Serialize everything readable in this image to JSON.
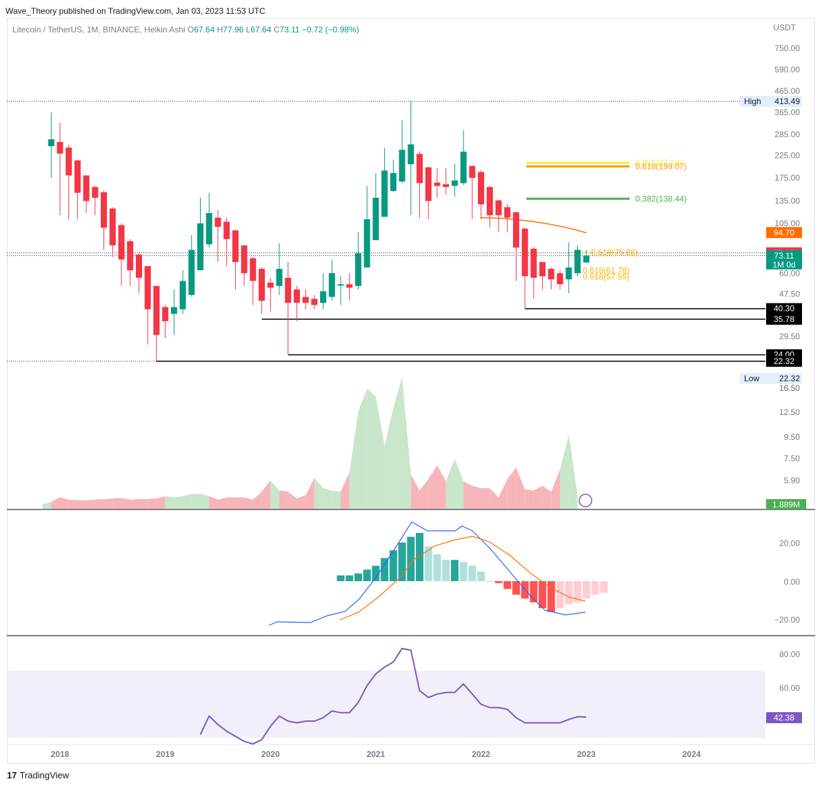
{
  "header": {
    "publisher": "Wave_Theory published on TradingView.com, Jan 03, 2023 11:53 UTC"
  },
  "legend": {
    "symbol": "Litecoin / TetherUS, 1M, BINANCE, Heikin Ashi",
    "o_label": "O",
    "o": "67.64",
    "h_label": "H",
    "h": "77.96",
    "l_label": "L",
    "l": "67.64",
    "c_label": "C",
    "c": "73.11",
    "change": "−0.72 (−0.98%)"
  },
  "footer": {
    "brand": "TradingView"
  },
  "colors": {
    "up": "#089981",
    "down": "#f23645",
    "grid_line": "#000000",
    "macd": "#2962ff",
    "signal": "#ff6d00",
    "rsi": "#7e57c2",
    "fib_green": "#4caf50",
    "fib_yellow": "#ffeb3b",
    "fib_orange": "#ff9800"
  },
  "chart_data": {
    "type": "candlestick",
    "price_scale": "log",
    "currency": "USDT",
    "y_ticks": [
      "750.00",
      "590.00",
      "465.00",
      "365.00",
      "285.00",
      "225.00",
      "175.00",
      "135.00",
      "105.00",
      "60.00",
      "47.50",
      "29.50",
      "16.50"
    ],
    "x_ticks": [
      "2018",
      "2019",
      "2020",
      "2021",
      "2022",
      "2023",
      "2024"
    ],
    "candles": [
      {
        "t": "2017-12",
        "o": 250,
        "h": 365,
        "l": 175,
        "c": 270
      },
      {
        "t": "2018-01",
        "o": 262,
        "h": 325,
        "l": 115,
        "c": 230
      },
      {
        "t": "2018-02",
        "o": 246,
        "h": 255,
        "l": 110,
        "c": 180
      },
      {
        "t": "2018-03",
        "o": 213,
        "h": 215,
        "l": 110,
        "c": 148
      },
      {
        "t": "2018-04",
        "o": 180,
        "h": 180,
        "l": 118,
        "c": 135
      },
      {
        "t": "2018-05",
        "o": 158,
        "h": 160,
        "l": 115,
        "c": 140
      },
      {
        "t": "2018-06",
        "o": 149,
        "h": 152,
        "l": 78,
        "c": 100
      },
      {
        "t": "2018-07",
        "o": 124,
        "h": 126,
        "l": 72,
        "c": 82
      },
      {
        "t": "2018-08",
        "o": 103,
        "h": 105,
        "l": 52,
        "c": 70
      },
      {
        "t": "2018-09",
        "o": 86,
        "h": 88,
        "l": 52,
        "c": 62
      },
      {
        "t": "2018-10",
        "o": 74,
        "h": 75,
        "l": 48,
        "c": 57
      },
      {
        "t": "2018-11",
        "o": 65,
        "h": 65,
        "l": 27,
        "c": 40
      },
      {
        "t": "2018-12",
        "o": 52,
        "h": 52,
        "l": 22.32,
        "c": 30
      },
      {
        "t": "2019-01",
        "o": 41,
        "h": 42,
        "l": 29,
        "c": 35
      },
      {
        "t": "2019-02",
        "o": 38,
        "h": 50,
        "l": 30,
        "c": 41
      },
      {
        "t": "2019-03",
        "o": 40,
        "h": 62,
        "l": 38,
        "c": 55
      },
      {
        "t": "2019-04",
        "o": 47,
        "h": 92,
        "l": 46,
        "c": 78
      },
      {
        "t": "2019-05",
        "o": 62,
        "h": 140,
        "l": 62,
        "c": 105
      },
      {
        "t": "2019-06",
        "o": 83,
        "h": 148,
        "l": 80,
        "c": 118
      },
      {
        "t": "2019-07",
        "o": 112,
        "h": 122,
        "l": 68,
        "c": 101
      },
      {
        "t": "2019-08",
        "o": 107,
        "h": 112,
        "l": 65,
        "c": 88
      },
      {
        "t": "2019-09",
        "o": 97,
        "h": 98,
        "l": 50,
        "c": 68
      },
      {
        "t": "2019-10",
        "o": 82,
        "h": 82,
        "l": 52,
        "c": 60
      },
      {
        "t": "2019-11",
        "o": 71,
        "h": 72,
        "l": 42,
        "c": 55
      },
      {
        "t": "2019-12",
        "o": 63,
        "h": 64,
        "l": 38,
        "c": 44
      },
      {
        "t": "2020-01",
        "o": 54,
        "h": 57,
        "l": 39,
        "c": 51
      },
      {
        "t": "2020-02",
        "o": 52,
        "h": 84,
        "l": 47,
        "c": 63
      },
      {
        "t": "2020-03",
        "o": 57,
        "h": 68,
        "l": 24.0,
        "c": 43
      },
      {
        "t": "2020-04",
        "o": 50,
        "h": 52,
        "l": 35,
        "c": 43
      },
      {
        "t": "2020-05",
        "o": 46,
        "h": 50,
        "l": 40,
        "c": 43
      },
      {
        "t": "2020-06",
        "o": 45,
        "h": 47,
        "l": 40,
        "c": 42
      },
      {
        "t": "2020-07",
        "o": 43,
        "h": 60,
        "l": 40,
        "c": 49
      },
      {
        "t": "2020-08",
        "o": 46,
        "h": 70,
        "l": 44,
        "c": 60
      },
      {
        "t": "2020-09",
        "o": 53,
        "h": 58,
        "l": 42,
        "c": 53
      },
      {
        "t": "2020-10",
        "o": 53,
        "h": 60,
        "l": 44,
        "c": 51
      },
      {
        "t": "2020-11",
        "o": 52,
        "h": 95,
        "l": 50,
        "c": 75
      },
      {
        "t": "2020-12",
        "o": 64,
        "h": 160,
        "l": 64,
        "c": 110
      },
      {
        "t": "2021-01",
        "o": 87,
        "h": 185,
        "l": 88,
        "c": 140
      },
      {
        "t": "2021-02",
        "o": 113,
        "h": 245,
        "l": 113,
        "c": 190
      },
      {
        "t": "2021-03",
        "o": 151,
        "h": 215,
        "l": 150,
        "c": 185
      },
      {
        "t": "2021-04",
        "o": 168,
        "h": 335,
        "l": 165,
        "c": 240
      },
      {
        "t": "2021-05",
        "o": 204,
        "h": 413.49,
        "l": 115,
        "c": 255
      },
      {
        "t": "2021-06",
        "o": 229,
        "h": 235,
        "l": 112,
        "c": 165
      },
      {
        "t": "2021-07",
        "o": 197,
        "h": 198,
        "l": 110,
        "c": 135
      },
      {
        "t": "2021-08",
        "o": 166,
        "h": 195,
        "l": 140,
        "c": 160
      },
      {
        "t": "2021-09",
        "o": 163,
        "h": 195,
        "l": 145,
        "c": 158
      },
      {
        "t": "2021-10",
        "o": 160,
        "h": 205,
        "l": 142,
        "c": 170
      },
      {
        "t": "2021-11",
        "o": 165,
        "h": 300,
        "l": 162,
        "c": 235
      },
      {
        "t": "2021-12",
        "o": 200,
        "h": 202,
        "l": 110,
        "c": 175
      },
      {
        "t": "2022-01",
        "o": 187,
        "h": 190,
        "l": 110,
        "c": 130
      },
      {
        "t": "2022-02",
        "o": 158,
        "h": 160,
        "l": 100,
        "c": 115
      },
      {
        "t": "2022-03",
        "o": 136,
        "h": 137,
        "l": 95,
        "c": 115
      },
      {
        "t": "2022-04",
        "o": 126,
        "h": 130,
        "l": 95,
        "c": 112
      },
      {
        "t": "2022-05",
        "o": 119,
        "h": 120,
        "l": 55,
        "c": 80
      },
      {
        "t": "2022-06",
        "o": 99,
        "h": 100,
        "l": 40.3,
        "c": 58
      },
      {
        "t": "2022-07",
        "o": 79,
        "h": 80,
        "l": 45,
        "c": 57
      },
      {
        "t": "2022-08",
        "o": 68,
        "h": 68,
        "l": 50,
        "c": 58
      },
      {
        "t": "2022-09",
        "o": 63,
        "h": 64,
        "l": 50,
        "c": 56
      },
      {
        "t": "2022-10",
        "o": 60,
        "h": 62,
        "l": 50,
        "c": 53
      },
      {
        "t": "2022-11",
        "o": 56,
        "h": 85,
        "l": 48,
        "c": 64
      },
      {
        "t": "2022-12",
        "o": 60,
        "h": 82,
        "l": 58,
        "c": 78
      },
      {
        "t": "2023-01",
        "o": 67.64,
        "h": 77.96,
        "l": 67.64,
        "c": 73.11
      }
    ],
    "price_labels": [
      {
        "label": "High",
        "value": "413.49"
      },
      {
        "label": "Low",
        "value": "22.32"
      },
      {
        "value": "94.70",
        "note": "moving average"
      },
      {
        "value": "75.42"
      },
      {
        "value": "73.11",
        "sub": "1M 0d"
      },
      {
        "value": "40.30"
      },
      {
        "value": "35.78"
      },
      {
        "value": "24.00"
      },
      {
        "value": "22.32"
      }
    ],
    "fib_levels": [
      {
        "label": "0.65(207.29)",
        "value": 207.29,
        "color": "#ffeb3b"
      },
      {
        "label": "0.618(199.07)",
        "value": 199.07,
        "color": "#ff9800"
      },
      {
        "label": "0.382(138.44)",
        "value": 138.44,
        "color": "#4caf50"
      },
      {
        "label": "0.618(75.88)",
        "value": 75.88
      },
      {
        "label": "0.618(61.78)",
        "value": 61.78
      },
      {
        "label": "0.618(57.55)",
        "value": 57.55
      }
    ],
    "horizontal_levels": [
      40.3,
      35.78,
      24.0,
      22.32,
      413.49
    ],
    "volume": {
      "label": "1.889M",
      "y_ticks": [
        "16.50",
        "12.50",
        "9.50",
        "7.50",
        "5.90"
      ]
    },
    "macd": {
      "y_ticks": [
        "20.00",
        "0.00",
        "−20.00"
      ]
    },
    "rsi": {
      "value_label": "42.38",
      "y_ticks": [
        "80.00",
        "60.00"
      ],
      "values": [
        {
          "t": "2019-05",
          "v": 32
        },
        {
          "t": "2019-06",
          "v": 43
        },
        {
          "t": "2019-07",
          "v": 38
        },
        {
          "t": "2019-08",
          "v": 34
        },
        {
          "t": "2019-09",
          "v": 31
        },
        {
          "t": "2019-10",
          "v": 28
        },
        {
          "t": "2019-11",
          "v": 26
        },
        {
          "t": "2019-12",
          "v": 29
        },
        {
          "t": "2020-01",
          "v": 37
        },
        {
          "t": "2020-02",
          "v": 43
        },
        {
          "t": "2020-03",
          "v": 40
        },
        {
          "t": "2020-04",
          "v": 39
        },
        {
          "t": "2020-05",
          "v": 40
        },
        {
          "t": "2020-06",
          "v": 40
        },
        {
          "t": "2020-07",
          "v": 42
        },
        {
          "t": "2020-08",
          "v": 46
        },
        {
          "t": "2020-09",
          "v": 45
        },
        {
          "t": "2020-10",
          "v": 45
        },
        {
          "t": "2020-11",
          "v": 51
        },
        {
          "t": "2020-12",
          "v": 61
        },
        {
          "t": "2021-01",
          "v": 68
        },
        {
          "t": "2021-02",
          "v": 72
        },
        {
          "t": "2021-03",
          "v": 75
        },
        {
          "t": "2021-04",
          "v": 83
        },
        {
          "t": "2021-05",
          "v": 82
        },
        {
          "t": "2021-06",
          "v": 58
        },
        {
          "t": "2021-07",
          "v": 54
        },
        {
          "t": "2021-08",
          "v": 56
        },
        {
          "t": "2021-09",
          "v": 57
        },
        {
          "t": "2021-10",
          "v": 57
        },
        {
          "t": "2021-11",
          "v": 62
        },
        {
          "t": "2021-12",
          "v": 56
        },
        {
          "t": "2022-01",
          "v": 50
        },
        {
          "t": "2022-02",
          "v": 48
        },
        {
          "t": "2022-03",
          "v": 48
        },
        {
          "t": "2022-04",
          "v": 47
        },
        {
          "t": "2022-05",
          "v": 42
        },
        {
          "t": "2022-06",
          "v": 39
        },
        {
          "t": "2022-07",
          "v": 39
        },
        {
          "t": "2022-08",
          "v": 39
        },
        {
          "t": "2022-09",
          "v": 39
        },
        {
          "t": "2022-10",
          "v": 39
        },
        {
          "t": "2022-11",
          "v": 41
        },
        {
          "t": "2022-12",
          "v": 42.6
        },
        {
          "t": "2023-01",
          "v": 42.38
        }
      ]
    }
  }
}
